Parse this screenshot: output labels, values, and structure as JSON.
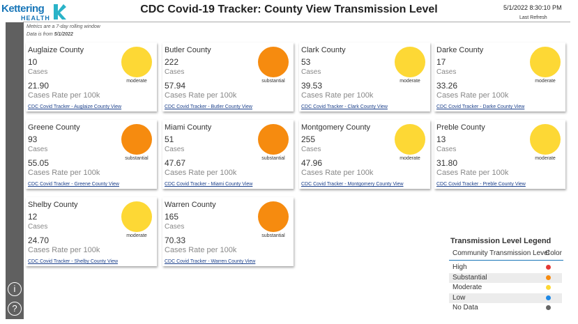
{
  "header": {
    "logo_name": "Kettering",
    "logo_sub": "HEALTH",
    "title": "CDC Covid-19 Tracker: County View Transmission Level",
    "refresh_time": "5/1/2022 8:30:10 PM",
    "refresh_label": "Last Refresh"
  },
  "notes": {
    "window": "Metrics are a 7-day rolling window",
    "data_from_label": "Data is from",
    "data_from_date": "5/1/2022"
  },
  "sidebar_icons": [
    "i",
    "?"
  ],
  "level_colors": {
    "moderate": "#fdd835",
    "substantial": "#f68b0f"
  },
  "cards": [
    {
      "name": "Auglaize County",
      "cases": 10,
      "cases_label": "Cases",
      "rate": "21.90",
      "rate_label": "Cases Rate per 100k",
      "level": "moderate",
      "link": "CDC Covid Tracker - Auglaize County View"
    },
    {
      "name": "Butler County",
      "cases": 222,
      "cases_label": "Cases",
      "rate": "57.94",
      "rate_label": "Cases Rate per 100k",
      "level": "substantial",
      "link": "CDC Covid Tracker - Butler County View"
    },
    {
      "name": "Clark County",
      "cases": 53,
      "cases_label": "Cases",
      "rate": "39.53",
      "rate_label": "Cases Rate per 100k",
      "level": "moderate",
      "link": "CDC Covid Tracker - Clark County View"
    },
    {
      "name": "Darke County",
      "cases": 17,
      "cases_label": "Cases",
      "rate": "33.26",
      "rate_label": "Cases Rate per 100k",
      "level": "moderate",
      "link": "CDC Covid Tracker - Darke County View"
    },
    {
      "name": "Greene County",
      "cases": 93,
      "cases_label": "Cases",
      "rate": "55.05",
      "rate_label": "Cases Rate per 100k",
      "level": "substantial",
      "link": "CDC Covid Tracker - Greene County View"
    },
    {
      "name": "Miami County",
      "cases": 51,
      "cases_label": "Cases",
      "rate": "47.67",
      "rate_label": "Cases Rate per 100k",
      "level": "substantial",
      "link": "CDC Covid Tracker - Miami County View"
    },
    {
      "name": "Montgomery County",
      "cases": 255,
      "cases_label": "Cases",
      "rate": "47.96",
      "rate_label": "Cases Rate per 100k",
      "level": "moderate",
      "link": "CDC Covid Tracker - Montgomery County View"
    },
    {
      "name": "Preble County",
      "cases": 13,
      "cases_label": "Cases",
      "rate": "31.80",
      "rate_label": "Cases Rate per 100k",
      "level": "moderate",
      "link": "CDC Covid Tracker - Preble County View"
    },
    {
      "name": "Shelby County",
      "cases": 12,
      "cases_label": "Cases",
      "rate": "24.70",
      "rate_label": "Cases Rate per 100k",
      "level": "moderate",
      "link": "CDC Covid Tracker - Shelby County View"
    },
    {
      "name": "Warren County",
      "cases": 165,
      "cases_label": "Cases",
      "rate": "70.33",
      "rate_label": "Cases Rate per 100k",
      "level": "substantial",
      "link": "CDC Covid Tracker - Warren County View"
    }
  ],
  "legend": {
    "title": "Transmission Level Legend",
    "col_level": "Community Transmission Level",
    "col_color": "Color",
    "rows": [
      {
        "label": "High",
        "color": "#e53935"
      },
      {
        "label": "Substantial",
        "color": "#f68b0f"
      },
      {
        "label": "Moderate",
        "color": "#fdd835"
      },
      {
        "label": "Low",
        "color": "#1e88e5"
      },
      {
        "label": "No Data",
        "color": "#666666"
      }
    ]
  }
}
